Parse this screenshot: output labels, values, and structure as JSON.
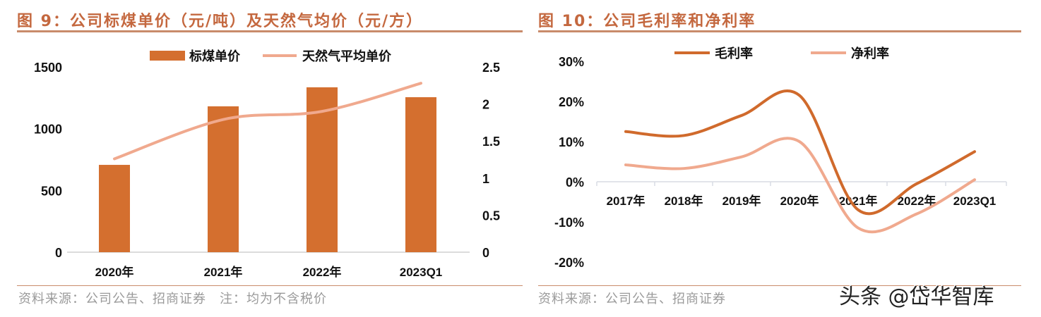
{
  "left": {
    "title": "图 9：公司标煤单价（元/吨）及天然气均价（元/方）",
    "source": "资料来源：公司公告、招商证券　注：均为不含税价"
  },
  "right": {
    "title": "图 10：公司毛利率和净利率",
    "source": "资料来源：公司公告、招商证券"
  },
  "watermark": "头条 @岱华智库",
  "colors": {
    "accent": "#C4683F",
    "bar": "#D46F2F",
    "line_light": "#F0A98E",
    "line_dark": "#D06A2C"
  },
  "chart_data": [
    {
      "type": "bar+line",
      "categories": [
        "2020年",
        "2021年",
        "2022年",
        "2023Q1"
      ],
      "series": [
        {
          "name": "标煤单价",
          "type": "bar",
          "axis": "left",
          "values": [
            707,
            1181,
            1335,
            1255
          ]
        },
        {
          "name": "天然气平均单价",
          "type": "line",
          "axis": "right",
          "values": [
            1.26,
            1.79,
            1.9,
            2.28
          ]
        }
      ],
      "ylim_left": [
        0,
        1500
      ],
      "yticks_left": [
        "0",
        "500",
        "1000",
        "1500"
      ],
      "ylim_right": [
        0,
        2.5
      ],
      "yticks_right": [
        "0",
        "0.5",
        "1",
        "1.5",
        "2",
        "2.5"
      ],
      "legend": "top",
      "grid": false
    },
    {
      "type": "line",
      "categories": [
        "2017年",
        "2018年",
        "2019年",
        "2020年",
        "2021年",
        "2022年",
        "2023Q1"
      ],
      "series": [
        {
          "name": "毛利率",
          "values": [
            12.5,
            11.5,
            16.5,
            21.5,
            -7.0,
            -0.5,
            7.5
          ]
        },
        {
          "name": "净利率",
          "values": [
            4.2,
            3.3,
            6.2,
            10.0,
            -11.5,
            -8.0,
            0.5
          ]
        }
      ],
      "ylim": [
        -20,
        30
      ],
      "yticks": [
        "-20%",
        "-10%",
        "0%",
        "10%",
        "20%",
        "30%"
      ],
      "legend": "top",
      "grid": false
    }
  ]
}
